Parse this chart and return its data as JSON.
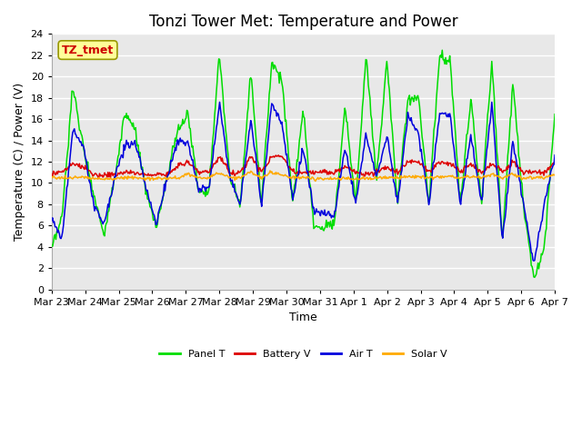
{
  "title": "Tonzi Tower Met: Temperature and Power",
  "xlabel": "Time",
  "ylabel": "Temperature (C) / Power (V)",
  "ylim": [
    0,
    24
  ],
  "yticks": [
    0,
    2,
    4,
    6,
    8,
    10,
    12,
    14,
    16,
    18,
    20,
    22,
    24
  ],
  "xtick_labels": [
    "Mar 23",
    "Mar 24",
    "Mar 25",
    "Mar 26",
    "Mar 27",
    "Mar 28",
    "Mar 29",
    "Mar 30",
    "Mar 31",
    "Apr 1",
    "Apr 2",
    "Apr 3",
    "Apr 4",
    "Apr 5",
    "Apr 6",
    "Apr 7"
  ],
  "series_colors": {
    "Panel T": "#00dd00",
    "Battery V": "#dd0000",
    "Air T": "#0000dd",
    "Solar V": "#ffaa00"
  },
  "legend_entries": [
    "Panel T",
    "Battery V",
    "Air T",
    "Solar V"
  ],
  "annotation_text": "TZ_tmet",
  "annotation_color": "#cc0000",
  "annotation_bg": "#ffff99",
  "plot_bg_color": "#e8e8e8",
  "grid_color": "#ffffff",
  "title_fontsize": 12,
  "axis_fontsize": 9,
  "tick_fontsize": 8,
  "panel_t_keypoints": [
    3.7,
    6.8,
    19.0,
    13.5,
    9.0,
    5.2,
    10.5,
    16.5,
    14.8,
    9.0,
    5.8,
    10.5,
    14.9,
    16.5,
    9.3,
    9.3,
    22.0,
    10.5,
    8.0,
    20.5,
    8.0,
    21.5,
    19.5,
    8.0,
    17.0,
    6.0,
    5.8,
    6.5,
    17.3,
    8.0,
    22.0,
    10.5,
    21.5,
    8.0,
    18.0,
    18.0,
    8.0,
    22.0,
    21.5,
    8.0,
    18.0,
    8.0,
    21.5,
    4.5,
    19.5,
    8.0,
    1.0,
    4.0,
    16.5
  ],
  "air_t_keypoints": [
    6.8,
    4.8,
    15.0,
    13.5,
    8.0,
    6.2,
    10.5,
    13.5,
    13.8,
    9.5,
    6.2,
    10.5,
    13.9,
    13.8,
    9.5,
    9.5,
    17.5,
    10.5,
    8.0,
    16.0,
    8.0,
    17.5,
    15.5,
    8.5,
    13.3,
    7.5,
    7.0,
    7.0,
    13.3,
    8.0,
    14.5,
    10.5,
    14.5,
    8.0,
    16.5,
    14.5,
    8.0,
    16.5,
    16.5,
    8.0,
    14.5,
    8.0,
    17.5,
    4.5,
    14.0,
    8.0,
    2.3,
    8.0,
    12.5
  ],
  "battery_keypoints": [
    10.9,
    11.0,
    11.8,
    11.5,
    10.8,
    10.7,
    10.8,
    11.0,
    11.0,
    10.8,
    10.8,
    10.8,
    11.5,
    12.0,
    11.0,
    11.0,
    12.5,
    11.0,
    11.0,
    12.5,
    11.0,
    12.5,
    12.5,
    11.0,
    11.0,
    11.0,
    11.0,
    11.0,
    11.5,
    11.0,
    10.8,
    11.0,
    11.5,
    11.0,
    12.0,
    12.0,
    11.0,
    12.0,
    11.8,
    11.0,
    11.8,
    11.0,
    11.8,
    11.0,
    12.0,
    11.0,
    11.0,
    11.0,
    12.0
  ],
  "solar_keypoints": [
    10.5,
    10.5,
    10.5,
    10.6,
    10.4,
    10.4,
    10.4,
    10.5,
    10.5,
    10.4,
    10.4,
    10.4,
    10.5,
    10.8,
    10.5,
    10.5,
    11.0,
    10.5,
    10.5,
    11.0,
    10.5,
    11.0,
    10.7,
    10.5,
    10.5,
    10.4,
    10.4,
    10.4,
    10.5,
    10.4,
    10.4,
    10.5,
    10.5,
    10.5,
    10.6,
    10.6,
    10.5,
    10.6,
    10.6,
    10.5,
    10.6,
    10.5,
    10.8,
    10.5,
    10.8,
    10.5,
    10.5,
    10.5,
    10.8
  ]
}
